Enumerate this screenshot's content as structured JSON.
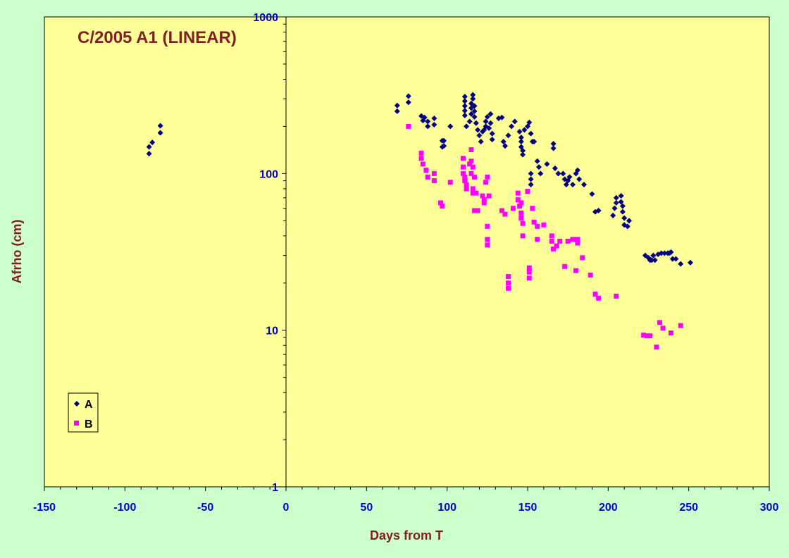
{
  "chart_data": {
    "type": "scatter",
    "title": "C/2005 A1 (LINEAR)",
    "xlabel": "Days from T",
    "ylabel": "Afrho (cm)",
    "xlim": [
      -150,
      300
    ],
    "ylim": [
      1,
      1000
    ],
    "yscale": "log",
    "x_ticks": [
      "-150",
      "-100",
      "-50",
      "0",
      "50",
      "100",
      "150",
      "200",
      "250",
      "300"
    ],
    "y_ticks": [
      "1",
      "10",
      "100",
      "1000"
    ],
    "grid": false,
    "legend_position": "bottom-left",
    "colors": {
      "plot_bg": "#ffff99",
      "page_bg": "#ccffcc",
      "series_a": "#000080",
      "series_b": "#ff00ff",
      "title": "#7f1f1f",
      "ticks": "#0000cc"
    },
    "series": [
      {
        "name": "A",
        "marker": "diamond",
        "color": "#000080",
        "points": [
          [
            -85,
            134
          ],
          [
            -85,
            148
          ],
          [
            -83,
            158
          ],
          [
            -78,
            182
          ],
          [
            -78,
            202
          ],
          [
            69,
            250
          ],
          [
            69,
            272
          ],
          [
            76,
            285
          ],
          [
            76,
            312
          ],
          [
            84,
            233
          ],
          [
            85,
            218
          ],
          [
            86,
            228
          ],
          [
            88,
            200
          ],
          [
            88,
            215
          ],
          [
            92,
            205
          ],
          [
            92,
            225
          ],
          [
            97,
            148
          ],
          [
            97,
            162
          ],
          [
            98,
            150
          ],
          [
            98,
            162
          ],
          [
            102,
            200
          ],
          [
            111,
            310
          ],
          [
            111,
            290
          ],
          [
            111,
            270
          ],
          [
            111,
            252
          ],
          [
            111,
            235
          ],
          [
            112,
            200
          ],
          [
            114,
            215
          ],
          [
            115,
            240
          ],
          [
            115,
            262
          ],
          [
            115,
            280
          ],
          [
            116,
            318
          ],
          [
            116,
            300
          ],
          [
            117,
            270
          ],
          [
            117,
            250
          ],
          [
            117,
            230
          ],
          [
            118,
            210
          ],
          [
            119,
            190
          ],
          [
            120,
            175
          ],
          [
            121,
            160
          ],
          [
            122,
            185
          ],
          [
            123,
            190
          ],
          [
            124,
            200
          ],
          [
            124,
            215
          ],
          [
            125,
            230
          ],
          [
            126,
            195
          ],
          [
            127,
            240
          ],
          [
            127,
            210
          ],
          [
            128,
            180
          ],
          [
            128,
            165
          ],
          [
            132,
            225
          ],
          [
            134,
            228
          ],
          [
            135,
            160
          ],
          [
            136,
            150
          ],
          [
            138,
            175
          ],
          [
            140,
            200
          ],
          [
            142,
            215
          ],
          [
            145,
            185
          ],
          [
            146,
            170
          ],
          [
            146,
            160
          ],
          [
            146,
            148
          ],
          [
            147,
            140
          ],
          [
            147,
            132
          ],
          [
            148,
            190
          ],
          [
            150,
            200
          ],
          [
            151,
            212
          ],
          [
            152,
            180
          ],
          [
            153,
            160
          ],
          [
            154,
            160
          ],
          [
            152,
            100
          ],
          [
            152,
            92
          ],
          [
            152,
            85
          ],
          [
            156,
            120
          ],
          [
            157,
            110
          ],
          [
            158,
            100
          ],
          [
            162,
            115
          ],
          [
            166,
            145
          ],
          [
            166,
            155
          ],
          [
            167,
            108
          ],
          [
            169,
            100
          ],
          [
            172,
            100
          ],
          [
            173,
            92
          ],
          [
            174,
            85
          ],
          [
            175,
            90
          ],
          [
            176,
            95
          ],
          [
            178,
            85
          ],
          [
            180,
            100
          ],
          [
            181,
            105
          ],
          [
            182,
            92
          ],
          [
            185,
            85
          ],
          [
            190,
            74
          ],
          [
            192,
            57
          ],
          [
            194,
            58
          ],
          [
            203,
            54
          ],
          [
            204,
            60
          ],
          [
            205,
            65
          ],
          [
            205,
            70
          ],
          [
            208,
            72
          ],
          [
            208,
            66
          ],
          [
            209,
            62
          ],
          [
            209,
            57
          ],
          [
            210,
            52
          ],
          [
            210,
            47
          ],
          [
            212,
            46
          ],
          [
            213,
            50
          ],
          [
            223,
            30
          ],
          [
            225,
            29
          ],
          [
            226,
            28
          ],
          [
            227,
            28
          ],
          [
            228,
            30
          ],
          [
            229,
            28
          ],
          [
            231,
            30.5
          ],
          [
            233,
            31
          ],
          [
            235,
            31
          ],
          [
            237,
            31
          ],
          [
            238,
            31
          ],
          [
            239,
            31.5
          ],
          [
            240,
            28.5
          ],
          [
            242,
            28.5
          ],
          [
            245,
            26.5
          ],
          [
            251,
            27
          ]
        ]
      },
      {
        "name": "B",
        "marker": "square",
        "color": "#ff00ff",
        "points": [
          [
            76,
            200
          ],
          [
            84,
            135
          ],
          [
            84,
            125
          ],
          [
            85,
            115
          ],
          [
            87,
            105
          ],
          [
            88,
            95
          ],
          [
            92,
            100
          ],
          [
            92,
            90
          ],
          [
            96,
            65
          ],
          [
            97,
            62
          ],
          [
            102,
            88
          ],
          [
            110,
            125
          ],
          [
            110,
            110
          ],
          [
            110,
            100
          ],
          [
            111,
            95
          ],
          [
            111,
            90
          ],
          [
            112,
            85
          ],
          [
            112,
            80
          ],
          [
            114,
            115
          ],
          [
            115,
            142
          ],
          [
            115,
            120
          ],
          [
            115,
            100
          ],
          [
            116,
            110
          ],
          [
            117,
            95
          ],
          [
            116,
            80
          ],
          [
            116,
            75
          ],
          [
            117,
            58
          ],
          [
            118,
            75
          ],
          [
            119,
            58
          ],
          [
            122,
            72
          ],
          [
            123,
            65
          ],
          [
            123,
            68
          ],
          [
            124,
            88
          ],
          [
            125,
            95
          ],
          [
            126,
            72
          ],
          [
            125,
            46
          ],
          [
            125,
            38
          ],
          [
            125,
            35
          ],
          [
            134,
            58
          ],
          [
            136,
            55
          ],
          [
            138,
            22
          ],
          [
            138,
            20
          ],
          [
            138,
            18.5
          ],
          [
            141,
            60
          ],
          [
            144,
            75
          ],
          [
            144,
            68
          ],
          [
            145,
            62
          ],
          [
            146,
            65
          ],
          [
            146,
            56
          ],
          [
            146,
            52
          ],
          [
            147,
            48
          ],
          [
            147,
            40
          ],
          [
            150,
            77
          ],
          [
            151,
            25
          ],
          [
            151,
            23.5
          ],
          [
            151,
            21.5
          ],
          [
            153,
            60
          ],
          [
            154,
            49
          ],
          [
            156,
            46
          ],
          [
            156,
            38
          ],
          [
            160,
            47
          ],
          [
            165,
            40
          ],
          [
            165,
            37
          ],
          [
            166,
            33
          ],
          [
            168,
            34.5
          ],
          [
            170,
            37
          ],
          [
            173,
            25.5
          ],
          [
            175,
            37
          ],
          [
            178,
            38
          ],
          [
            180,
            24
          ],
          [
            181,
            36
          ],
          [
            181,
            38
          ],
          [
            184,
            29
          ],
          [
            189,
            22.5
          ],
          [
            192,
            17
          ],
          [
            194,
            16
          ],
          [
            205,
            16.5
          ],
          [
            222,
            9.3
          ],
          [
            224,
            9.2
          ],
          [
            226,
            9.2
          ],
          [
            230,
            7.8
          ],
          [
            232,
            11.2
          ],
          [
            234,
            10.3
          ],
          [
            239,
            9.6
          ],
          [
            245,
            10.7
          ]
        ]
      }
    ]
  }
}
